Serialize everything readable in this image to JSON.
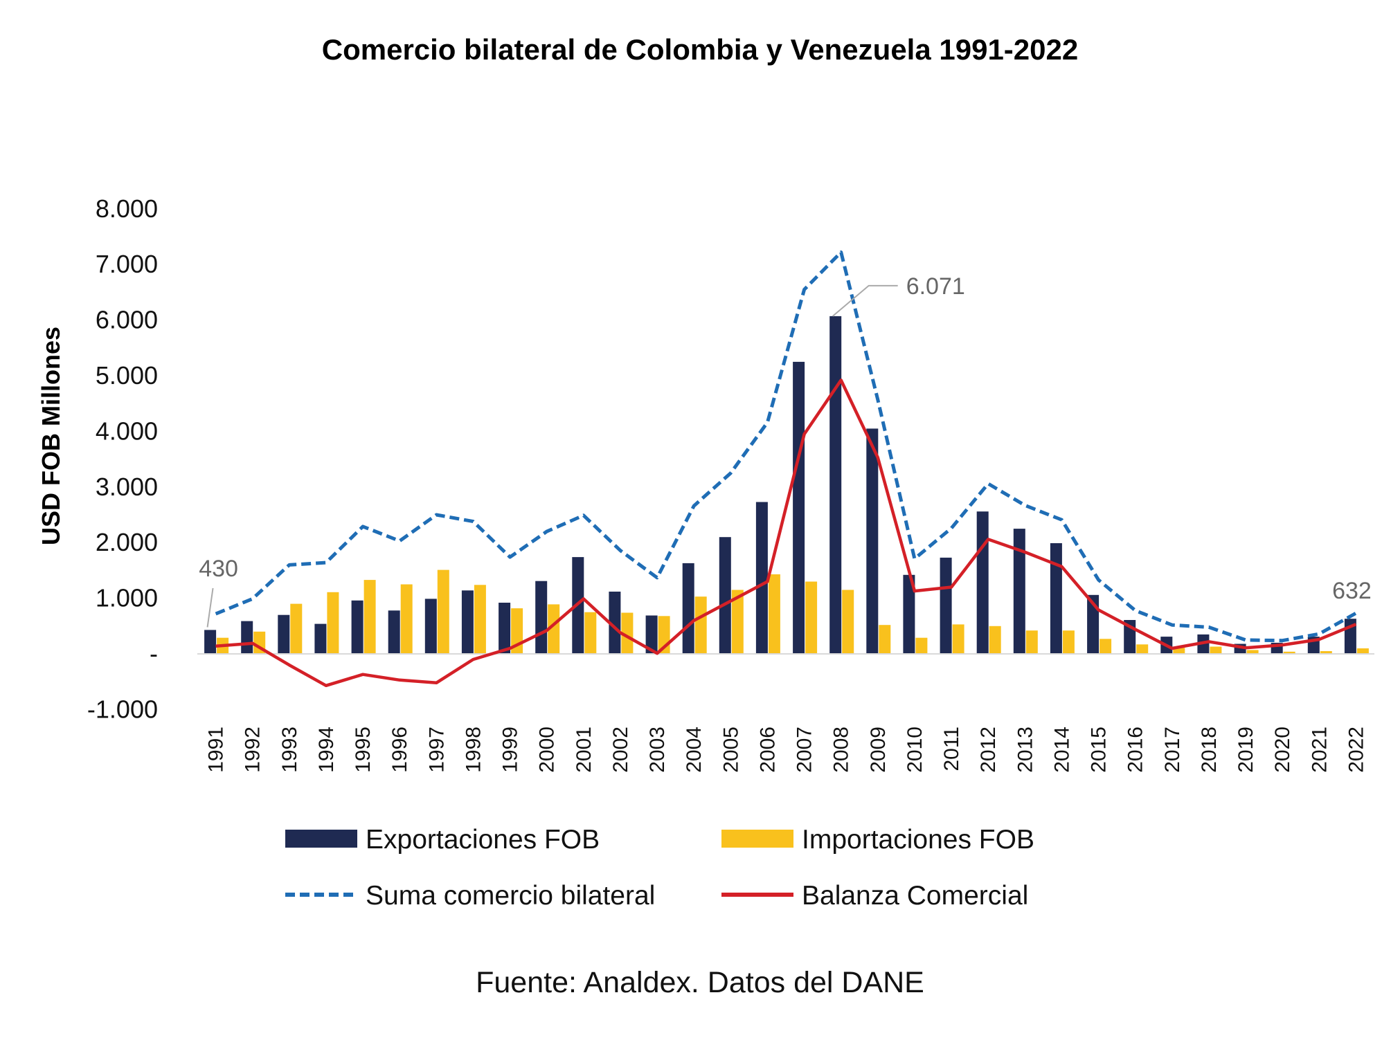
{
  "chart_data": {
    "type": "bar",
    "title": "Comercio bilateral de Colombia y Venezuela 1991-2022",
    "ylabel": "USD FOB Millones",
    "xlabel": "",
    "ylim": [
      -1000,
      8000
    ],
    "yticks": [
      {
        "value": 8000,
        "label": "8.000"
      },
      {
        "value": 7000,
        "label": "7.000"
      },
      {
        "value": 6000,
        "label": "6.000"
      },
      {
        "value": 5000,
        "label": "5.000"
      },
      {
        "value": 4000,
        "label": "4.000"
      },
      {
        "value": 3000,
        "label": "3.000"
      },
      {
        "value": 2000,
        "label": "2.000"
      },
      {
        "value": 1000,
        "label": "1.000"
      },
      {
        "value": 0,
        "label": "-"
      },
      {
        "value": -1000,
        "label": "-1.000"
      }
    ],
    "categories": [
      "1991",
      "1992",
      "1993",
      "1994",
      "1995",
      "1996",
      "1997",
      "1998",
      "1999",
      "2000",
      "2001",
      "2002",
      "2003",
      "2004",
      "2005",
      "2006",
      "2007",
      "2008",
      "2009",
      "2010",
      "2011",
      "2012",
      "2013",
      "2014",
      "2015",
      "2016",
      "2017",
      "2018",
      "2019",
      "2020",
      "2021",
      "2022"
    ],
    "series": [
      {
        "name": "Exportaciones FOB",
        "kind": "bar",
        "color": "#1f2a52",
        "values": [
          430,
          590,
          700,
          540,
          960,
          780,
          990,
          1140,
          920,
          1310,
          1740,
          1120,
          690,
          1630,
          2100,
          2730,
          5250,
          6071,
          4050,
          1420,
          1730,
          2560,
          2250,
          1990,
          1060,
          610,
          310,
          350,
          180,
          200,
          310,
          632
        ]
      },
      {
        "name": "Importaciones FOB",
        "kind": "bar",
        "color": "#f9c11d",
        "values": [
          290,
          400,
          900,
          1110,
          1330,
          1250,
          1510,
          1240,
          820,
          890,
          750,
          740,
          680,
          1030,
          1150,
          1430,
          1300,
          1150,
          520,
          290,
          530,
          500,
          420,
          420,
          270,
          170,
          110,
          130,
          70,
          40,
          50,
          100
        ]
      },
      {
        "name": "Suma comercio bilateral",
        "kind": "line",
        "color": "#1f6db5",
        "dashed": true,
        "values": [
          720,
          990,
          1600,
          1640,
          2290,
          2030,
          2500,
          2380,
          1740,
          2200,
          2490,
          1860,
          1370,
          2660,
          3250,
          4160,
          6550,
          7220,
          4570,
          1710,
          2260,
          3060,
          2670,
          2410,
          1330,
          780,
          520,
          480,
          250,
          240,
          360,
          732
        ]
      },
      {
        "name": "Balanza Comercial",
        "kind": "line",
        "color": "#d42027",
        "values": [
          140,
          190,
          -200,
          -570,
          -370,
          -470,
          -520,
          -100,
          100,
          420,
          990,
          380,
          10,
          600,
          950,
          1300,
          3950,
          4920,
          3530,
          1130,
          1200,
          2060,
          1830,
          1570,
          790,
          440,
          100,
          220,
          110,
          160,
          260,
          532
        ]
      }
    ],
    "annotations": [
      {
        "label": "430",
        "category": "1991",
        "value": 430
      },
      {
        "label": "6.071",
        "category": "2008",
        "value": 6071
      },
      {
        "label": "632",
        "category": "2022",
        "value": 632
      }
    ],
    "legend": {
      "placement": "bottom"
    }
  },
  "source": "Fuente: Analdex. Datos del DANE"
}
